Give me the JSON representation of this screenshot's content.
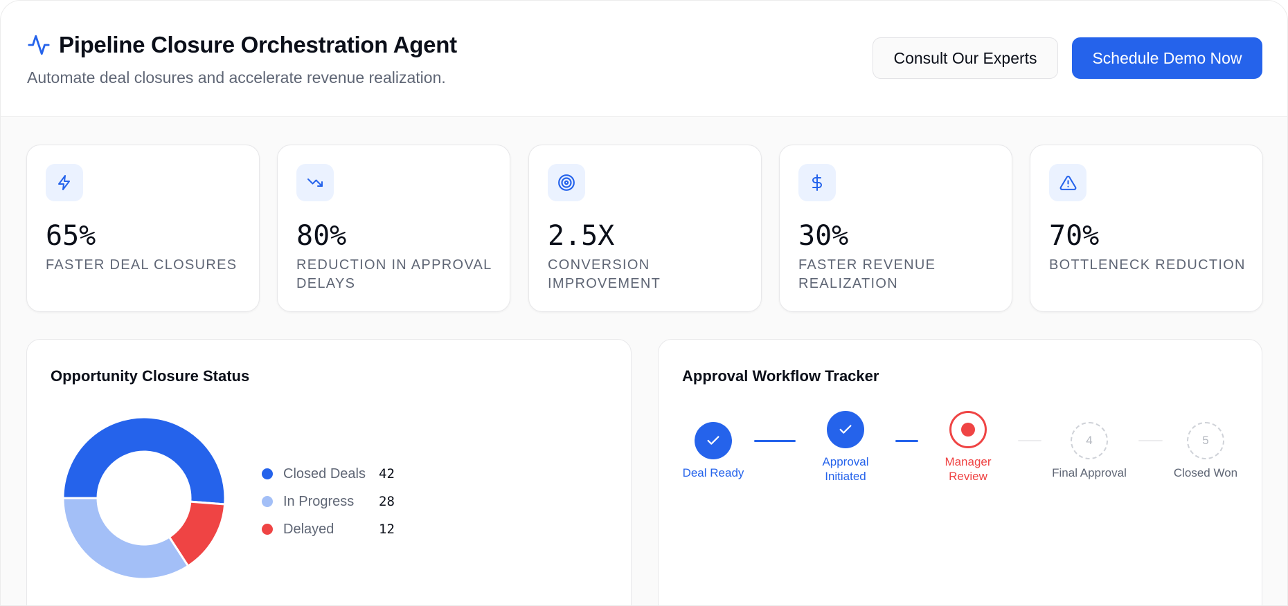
{
  "header": {
    "title": "Pipeline Closure Orchestration Agent",
    "title_icon": "activity-icon",
    "subtitle": "Automate deal closures and accelerate revenue realization.",
    "buttons": {
      "consult": "Consult Our Experts",
      "schedule": "Schedule Demo Now"
    }
  },
  "colors": {
    "accent": "#2563eb",
    "accent_light": "#a3bff7",
    "danger": "#ef4444",
    "icon_bg": "#ebf2ff",
    "muted_text": "#5f6675"
  },
  "stats": [
    {
      "icon": "zap-icon",
      "value": "65%",
      "label": "Faster Deal Closures"
    },
    {
      "icon": "trending-down-icon",
      "value": "80%",
      "label": "Reduction in Approval Delays"
    },
    {
      "icon": "target-icon",
      "value": "2.5X",
      "label": "Conversion Improvement"
    },
    {
      "icon": "dollar-icon",
      "value": "30%",
      "label": "Faster Revenue Realization"
    },
    {
      "icon": "alert-triangle-icon",
      "value": "70%",
      "label": "Bottleneck Reduction"
    }
  ],
  "opportunity_panel": {
    "title": "Opportunity Closure Status",
    "legend": [
      {
        "label": "Closed Deals",
        "value": "42",
        "color": "#2563eb"
      },
      {
        "label": "In Progress",
        "value": "28",
        "color": "#a3bff7"
      },
      {
        "label": "Delayed",
        "value": "12",
        "color": "#ef4444"
      }
    ]
  },
  "chart_data": {
    "type": "pie",
    "title": "Opportunity Closure Status",
    "categories": [
      "Closed Deals",
      "In Progress",
      "Delayed"
    ],
    "values": [
      42,
      28,
      12
    ],
    "colors": [
      "#2563eb",
      "#a3bff7",
      "#ef4444"
    ],
    "donut": true,
    "legend_position": "right"
  },
  "workflow_panel": {
    "title": "Approval Workflow Tracker",
    "steps": [
      {
        "label": "Deal Ready",
        "status": "done",
        "marker": "check"
      },
      {
        "label": "Approval Initiated",
        "status": "done",
        "marker": "check"
      },
      {
        "label": "Manager Review",
        "status": "active",
        "marker": "dot"
      },
      {
        "label": "Final Approval",
        "status": "pending",
        "marker": "4"
      },
      {
        "label": "Closed Won",
        "status": "pending",
        "marker": "5"
      }
    ]
  }
}
